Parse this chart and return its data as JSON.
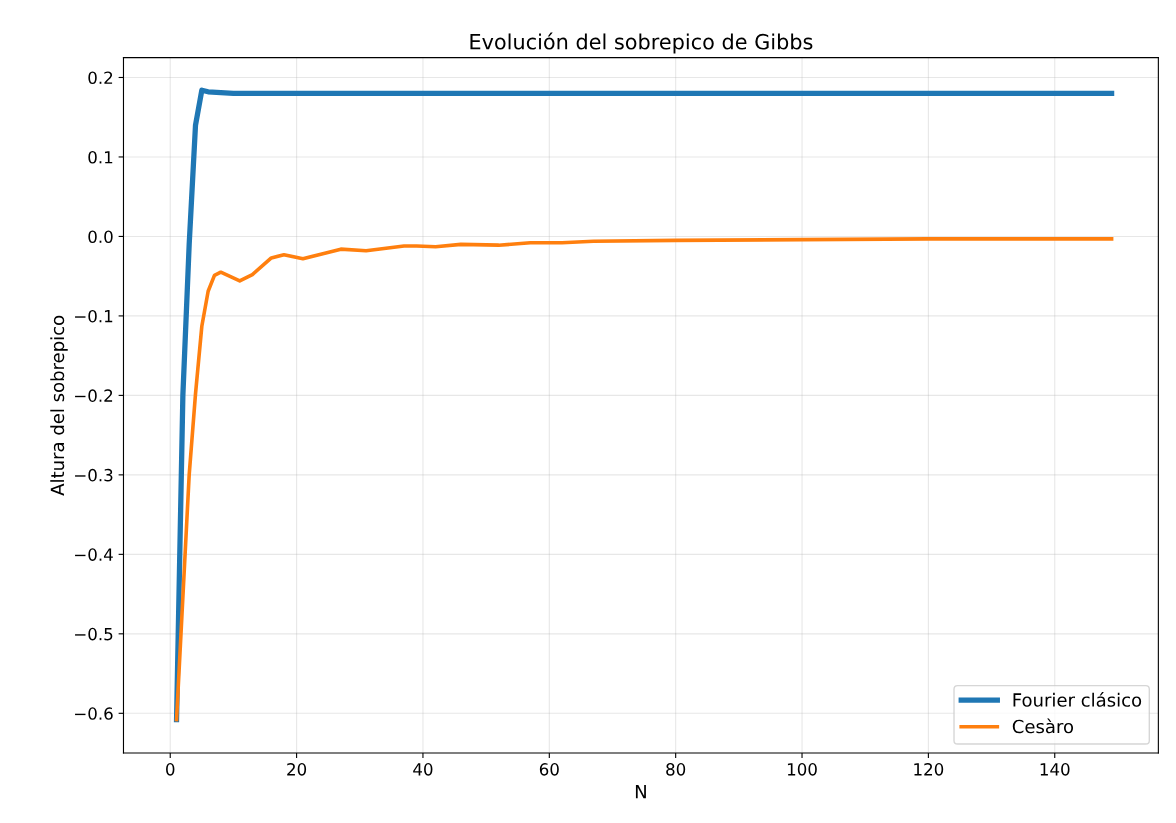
{
  "chart_data": {
    "type": "line",
    "title": "Evolución del sobrepico de Gibbs",
    "xlabel": "N",
    "ylabel": "Altura del sobrepico",
    "series": [
      {
        "name": "Fourier clásico",
        "color": "#1f77b4",
        "x": [
          1,
          2,
          3,
          4,
          5,
          6,
          8,
          10,
          15,
          20,
          40,
          60,
          80,
          100,
          120,
          149
        ],
        "values": [
          -0.608,
          -0.2,
          -0.01,
          0.14,
          0.184,
          0.182,
          0.181,
          0.18,
          0.18,
          0.18,
          0.18,
          0.18,
          0.18,
          0.18,
          0.18,
          0.18
        ]
      },
      {
        "name": "Cesàro",
        "color": "#ff7f0e",
        "x": [
          1,
          3,
          4,
          5,
          6,
          7,
          8,
          11,
          13,
          16,
          18,
          21,
          24,
          27,
          31,
          37,
          39,
          42,
          46,
          52,
          57,
          62,
          67,
          80,
          100,
          120,
          149
        ],
        "values": [
          -0.608,
          -0.3,
          -0.198,
          -0.113,
          -0.069,
          -0.049,
          -0.045,
          -0.056,
          -0.048,
          -0.027,
          -0.023,
          -0.028,
          -0.022,
          -0.016,
          -0.018,
          -0.012,
          -0.012,
          -0.013,
          -0.01,
          -0.011,
          -0.008,
          -0.008,
          -0.006,
          -0.005,
          -0.004,
          -0.003,
          -0.003
        ]
      }
    ],
    "xlim": [
      -7.4,
      156.4
    ],
    "ylim": [
      -0.65,
      0.225
    ],
    "xticks": [
      0,
      20,
      40,
      60,
      80,
      100,
      120,
      140
    ],
    "yticks": [
      {
        "value": -0.6,
        "label": "−0.6"
      },
      {
        "value": -0.5,
        "label": "−0.5"
      },
      {
        "value": -0.4,
        "label": "−0.4"
      },
      {
        "value": -0.3,
        "label": "−0.3"
      },
      {
        "value": -0.2,
        "label": "−0.2"
      },
      {
        "value": -0.1,
        "label": "−0.1"
      },
      {
        "value": 0,
        "label": "0.0"
      },
      {
        "value": 0.1,
        "label": "0.1"
      },
      {
        "value": 0.2,
        "label": "0.2"
      }
    ],
    "grid": true,
    "legend": "lower right",
    "marker": "none",
    "line_style": "solid"
  }
}
